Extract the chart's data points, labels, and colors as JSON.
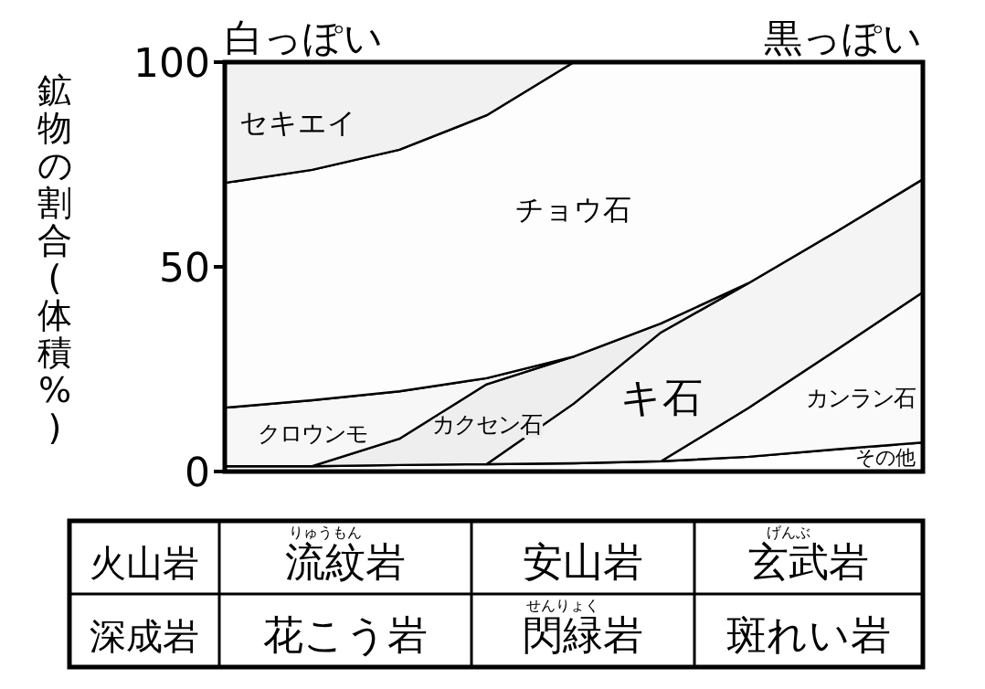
{
  "chart_data": {
    "type": "area",
    "stacked": true,
    "ylabel": "鉱物の割合(体積%)",
    "categories": [
      null,
      null,
      null,
      null,
      null,
      null,
      null,
      null,
      null
    ],
    "series": [
      {
        "name": "その他",
        "color": "#ffffff",
        "values": [
          1.3,
          1.3,
          1.6,
          1.8,
          2,
          2.5,
          3.6,
          5.4,
          7.1
        ]
      },
      {
        "name": "カンラン石",
        "color": "#fafafa",
        "values": [
          null,
          null,
          null,
          null,
          null,
          0,
          11.9,
          24.2,
          36.7
        ]
      },
      {
        "name": "キ石",
        "color": "#f4f4f4",
        "values": [
          null,
          null,
          null,
          0,
          14.6,
          31.5,
          30.5,
          28.9,
          27.6
        ]
      },
      {
        "name": "カクセン石",
        "color": "#eeeeee",
        "values": [
          null,
          0,
          6.4,
          19.5,
          11.5,
          2.2,
          0,
          null,
          null
        ]
      },
      {
        "name": "クロウンモ",
        "color": "#f7f7f7",
        "values": [
          14.3,
          16.1,
          11.6,
          1.5,
          0,
          null,
          null,
          null,
          null
        ]
      },
      {
        "name": "チョウ石",
        "color": "#fdfdfd",
        "values": [
          54.9,
          56.3,
          59,
          64.2,
          71.9,
          63.8,
          54,
          41.5,
          28.6
        ]
      },
      {
        "name": "セキエイ",
        "color": "#f1f1f1",
        "values": [
          29.5,
          26.3,
          21.4,
          13,
          0,
          null,
          null,
          null,
          null
        ]
      }
    ],
    "ylim": [
      0,
      100
    ],
    "yticks": [
      0,
      50,
      100
    ],
    "annotations": [
      "白っぽい",
      "黒っぽい",
      "火山岩",
      "流紋岩",
      "安山岩",
      "玄武岩",
      "深成岩",
      "花こう岩",
      "閃緑岩",
      "斑れい岩",
      "りゅうもん",
      "せんりょく",
      "げんぶ"
    ]
  }
}
